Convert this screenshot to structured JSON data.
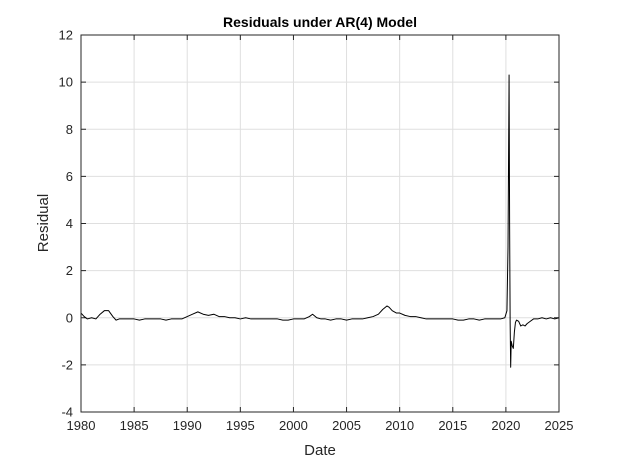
{
  "chart_data": {
    "type": "line",
    "title": "Residuals under AR(4) Model",
    "xlabel": "Date",
    "ylabel": "Residual",
    "xlim": [
      1980,
      2025
    ],
    "ylim": [
      -4,
      12
    ],
    "xticks": [
      "1980",
      "1985",
      "1990",
      "1995",
      "2000",
      "2005",
      "2010",
      "2015",
      "2020",
      "2025"
    ],
    "yticks": [
      "-4",
      "-2",
      "0",
      "2",
      "4",
      "6",
      "8",
      "10",
      "12"
    ],
    "grid": true,
    "colors": {
      "line": "#000000",
      "grid": "#dfdfdf",
      "axis": "#262626"
    },
    "series": [
      {
        "x": [
          1980.0,
          1980.3,
          1980.6,
          1981.0,
          1981.4,
          1981.8,
          1982.2,
          1982.6,
          1983.0,
          1983.3,
          1983.6,
          1984.0,
          1984.5,
          1985.0,
          1985.5,
          1986.0,
          1986.5,
          1987.0,
          1987.5,
          1988.0,
          1988.5,
          1989.0,
          1989.5,
          1990.0,
          1990.5,
          1991.0,
          1991.5,
          1992.0,
          1992.5,
          1993.0,
          1993.5,
          1994.0,
          1994.5,
          1995.0,
          1995.5,
          1996.0,
          1996.5,
          1997.0,
          1997.5,
          1998.0,
          1998.5,
          1999.0,
          1999.5,
          2000.0,
          2000.5,
          2001.0,
          2001.5,
          2001.8,
          2002.2,
          2002.6,
          2003.0,
          2003.5,
          2004.0,
          2004.5,
          2005.0,
          2005.5,
          2006.0,
          2006.5,
          2007.0,
          2007.5,
          2008.0,
          2008.4,
          2008.8,
          2009.0,
          2009.3,
          2009.7,
          2010.0,
          2010.5,
          2011.0,
          2011.5,
          2012.0,
          2012.5,
          2013.0,
          2013.5,
          2014.0,
          2014.5,
          2015.0,
          2015.5,
          2016.0,
          2016.5,
          2017.0,
          2017.5,
          2018.0,
          2018.5,
          2019.0,
          2019.5,
          2019.9,
          2020.1,
          2020.2,
          2020.3,
          2020.35,
          2020.4,
          2020.45,
          2020.5,
          2020.6,
          2020.7,
          2020.8,
          2020.9,
          2021.0,
          2021.2,
          2021.4,
          2021.6,
          2021.8,
          2022.0,
          2022.3,
          2022.6,
          2023.0,
          2023.4,
          2023.8,
          2024.2,
          2024.6,
          2025.0
        ],
        "y": [
          0.2,
          0.05,
          -0.05,
          0.0,
          -0.05,
          0.15,
          0.3,
          0.3,
          0.05,
          -0.1,
          -0.05,
          -0.05,
          -0.05,
          -0.05,
          -0.1,
          -0.05,
          -0.05,
          -0.05,
          -0.05,
          -0.1,
          -0.05,
          -0.05,
          -0.05,
          0.05,
          0.15,
          0.25,
          0.15,
          0.1,
          0.15,
          0.05,
          0.05,
          0.0,
          0.0,
          -0.05,
          0.0,
          -0.05,
          -0.05,
          -0.05,
          -0.05,
          -0.05,
          -0.05,
          -0.1,
          -0.1,
          -0.05,
          -0.05,
          -0.05,
          0.05,
          0.15,
          0.0,
          -0.05,
          -0.05,
          -0.1,
          -0.05,
          -0.05,
          -0.1,
          -0.05,
          -0.05,
          -0.05,
          0.0,
          0.05,
          0.15,
          0.35,
          0.5,
          0.45,
          0.3,
          0.2,
          0.2,
          0.1,
          0.05,
          0.05,
          0.0,
          -0.05,
          -0.05,
          -0.05,
          -0.05,
          -0.05,
          -0.05,
          -0.1,
          -0.1,
          -0.05,
          -0.05,
          -0.1,
          -0.05,
          -0.05,
          -0.05,
          -0.05,
          0.0,
          0.3,
          3.0,
          10.3,
          4.0,
          -0.2,
          -2.1,
          -1.0,
          -1.2,
          -1.3,
          -0.6,
          -0.2,
          -0.1,
          -0.15,
          -0.35,
          -0.3,
          -0.35,
          -0.25,
          -0.15,
          -0.05,
          -0.05,
          0.0,
          -0.05,
          0.0,
          -0.05,
          0.0
        ]
      }
    ]
  }
}
